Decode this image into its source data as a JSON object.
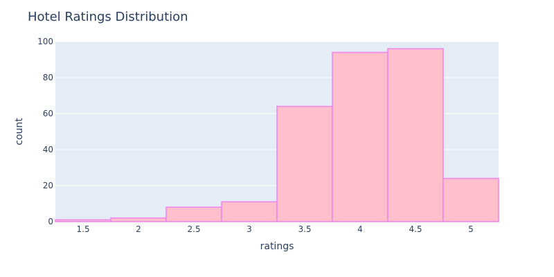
{
  "chart_data": {
    "type": "bar",
    "title": "Hotel Ratings Distribution",
    "xlabel": "ratings",
    "ylabel": "count",
    "bin_width": 0.5,
    "xlim": [
      1.25,
      5.25
    ],
    "ylim": [
      0,
      100
    ],
    "x_ticks": [
      1.5,
      2,
      2.5,
      3,
      3.5,
      4,
      4.5,
      5
    ],
    "x_tick_labels": [
      "1.5",
      "2",
      "2.5",
      "3",
      "3.5",
      "4",
      "4.5",
      "5"
    ],
    "y_ticks": [
      0,
      20,
      40,
      60,
      80,
      100
    ],
    "y_tick_labels": [
      "0",
      "20",
      "40",
      "60",
      "80",
      "100"
    ],
    "categories": [
      1.5,
      2,
      2.5,
      3,
      3.5,
      4,
      4.5,
      5
    ],
    "values": [
      1,
      2,
      8,
      11,
      64,
      94,
      96,
      24
    ],
    "grid": true,
    "legend": "none",
    "colors": {
      "bar_fill": "#ffc0cb",
      "bar_stroke": "#ee82ee",
      "plot_bg": "#e5ecf6",
      "grid": "#ffffff",
      "text": "#2a3f5f"
    }
  }
}
